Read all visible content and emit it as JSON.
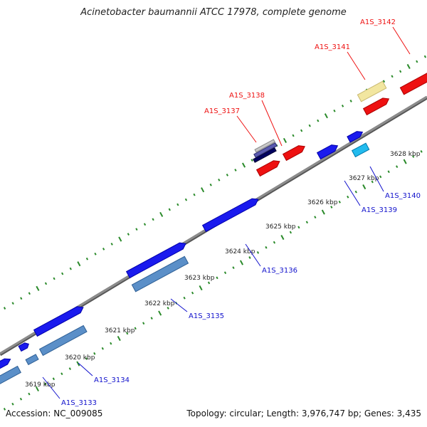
{
  "title": "Acinetobacter baumannii ATCC 17978, complete genome",
  "footer": {
    "accession": "Accession: NC_009085",
    "info": "Topology: circular; Length: 3,976,747 bp; Genes: 3,435"
  },
  "colors": {
    "backbone": "#8c8c8c",
    "tick": "#2a8a2a",
    "forward_label": "#ee1111",
    "reverse_label": "#1111cc"
  },
  "ticks": [
    {
      "label": "3619 kbp"
    },
    {
      "label": "3620 kbp"
    },
    {
      "label": "3621 kbp"
    },
    {
      "label": "3622 kbp"
    },
    {
      "label": "3623 kbp"
    },
    {
      "label": "3624 kbp"
    },
    {
      "label": "3625 kbp"
    },
    {
      "label": "3626 kbp"
    },
    {
      "label": "3627 kbp"
    },
    {
      "label": "3628 kbp"
    }
  ],
  "genes": [
    {
      "name": "A1S_3133",
      "strand": "reverse",
      "color": "#2222ee"
    },
    {
      "name": "A1S_3134",
      "strand": "reverse",
      "color": "#2222ee"
    },
    {
      "name": "A1S_3135",
      "strand": "reverse",
      "color": "#2222ee"
    },
    {
      "name": "A1S_3136",
      "strand": "reverse",
      "color": "#2222ee"
    },
    {
      "name": "A1S_3137",
      "strand": "forward",
      "color": "#ee1111"
    },
    {
      "name": "A1S_3138",
      "strand": "forward",
      "color": "#ee1111"
    },
    {
      "name": "A1S_3139",
      "strand": "reverse",
      "color": "#2222ee"
    },
    {
      "name": "A1S_3140",
      "strand": "reverse",
      "color": "#2222ee"
    },
    {
      "name": "A1S_3141",
      "strand": "forward",
      "color": "#ee1111"
    },
    {
      "name": "A1S_3142",
      "strand": "forward",
      "color": "#ee1111"
    }
  ]
}
